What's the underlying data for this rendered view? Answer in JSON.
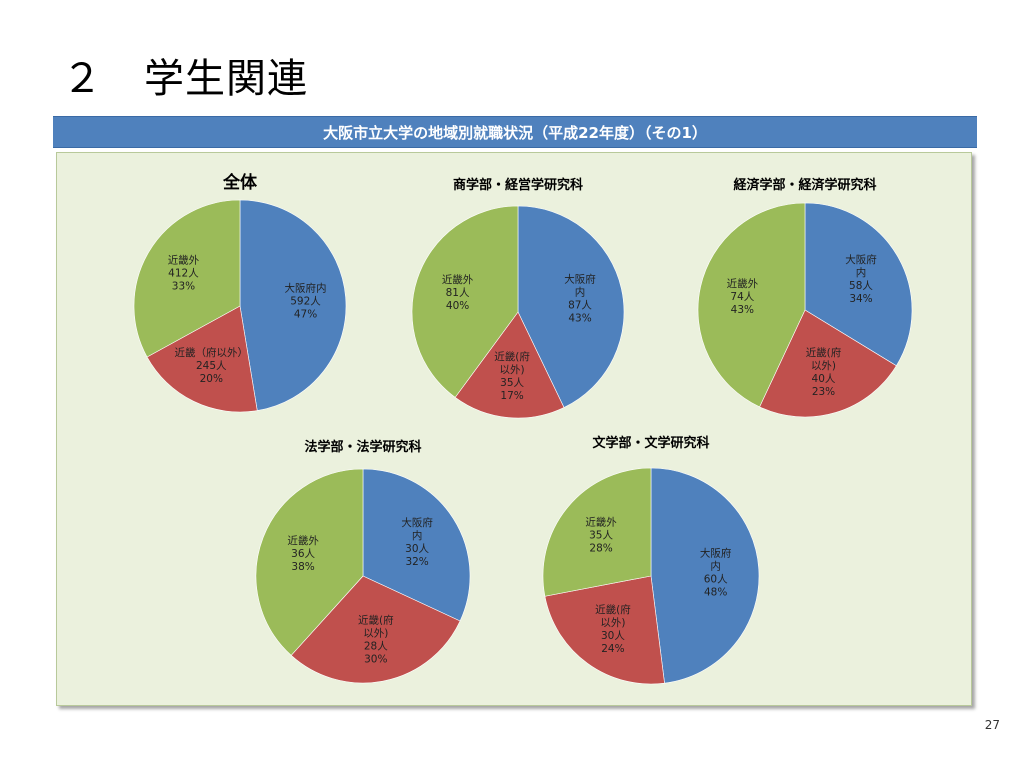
{
  "slide": {
    "title": "２　学生関連",
    "banner": "大阪市立大学の地域別就職状況（平成22年度）（その1）",
    "page_number": "27"
  },
  "colors": {
    "osaka": "#4f81bd",
    "kinki": "#c0504d",
    "outside": "#9bbb59",
    "banner": "#4f81bd",
    "panel": "#ebf1dd"
  },
  "chart_data": [
    {
      "type": "pie",
      "title": "全体",
      "series": [
        {
          "name": "大阪府内",
          "value": 592,
          "percent": 47,
          "color": "#4f81bd",
          "label": [
            "大阪府内",
            "592人",
            "47%"
          ]
        },
        {
          "name": "近畿（府以外）",
          "value": 245,
          "percent": 20,
          "color": "#c0504d",
          "label": [
            "近畿（府以外）",
            "245人",
            "20%"
          ]
        },
        {
          "name": "近畿外",
          "value": 412,
          "percent": 33,
          "color": "#9bbb59",
          "label": [
            "近畿外",
            "412人",
            "33%"
          ]
        }
      ]
    },
    {
      "type": "pie",
      "title": "商学部・経営学研究科",
      "series": [
        {
          "name": "大阪府内",
          "value": 87,
          "percent": 43,
          "color": "#4f81bd",
          "label": [
            "大阪府",
            "内",
            "87人",
            "43%"
          ]
        },
        {
          "name": "近畿(府以外)",
          "value": 35,
          "percent": 17,
          "color": "#c0504d",
          "label": [
            "近畿(府",
            "以外)",
            "35人",
            "17%"
          ]
        },
        {
          "name": "近畿外",
          "value": 81,
          "percent": 40,
          "color": "#9bbb59",
          "label": [
            "近畿外",
            "81人",
            "40%"
          ]
        }
      ]
    },
    {
      "type": "pie",
      "title": "経済学部・経済学研究科",
      "series": [
        {
          "name": "大阪府内",
          "value": 58,
          "percent": 34,
          "color": "#4f81bd",
          "label": [
            "大阪府",
            "内",
            "58人",
            "34%"
          ]
        },
        {
          "name": "近畿(府以外)",
          "value": 40,
          "percent": 23,
          "color": "#c0504d",
          "label": [
            "近畿(府",
            "以外)",
            "40人",
            "23%"
          ]
        },
        {
          "name": "近畿外",
          "value": 74,
          "percent": 43,
          "color": "#9bbb59",
          "label": [
            "近畿外",
            "74人",
            "43%"
          ]
        }
      ]
    },
    {
      "type": "pie",
      "title": "法学部・法学研究科",
      "series": [
        {
          "name": "大阪府内",
          "value": 30,
          "percent": 32,
          "color": "#4f81bd",
          "label": [
            "大阪府",
            "内",
            "30人",
            "32%"
          ]
        },
        {
          "name": "近畿(府以外)",
          "value": 28,
          "percent": 30,
          "color": "#c0504d",
          "label": [
            "近畿(府",
            "以外)",
            "28人",
            "30%"
          ]
        },
        {
          "name": "近畿外",
          "value": 36,
          "percent": 38,
          "color": "#9bbb59",
          "label": [
            "近畿外",
            "36人",
            "38%"
          ]
        }
      ]
    },
    {
      "type": "pie",
      "title": "文学部・文学研究科",
      "series": [
        {
          "name": "大阪府内",
          "value": 60,
          "percent": 48,
          "color": "#4f81bd",
          "label": [
            "大阪府",
            "内",
            "60人",
            "48%"
          ]
        },
        {
          "name": "近畿(府以外)",
          "value": 30,
          "percent": 24,
          "color": "#c0504d",
          "label": [
            "近畿(府",
            "以外)",
            "30人",
            "24%"
          ]
        },
        {
          "name": "近畿外",
          "value": 35,
          "percent": 28,
          "color": "#9bbb59",
          "label": [
            "近畿外",
            "35人",
            "28%"
          ]
        }
      ]
    }
  ]
}
